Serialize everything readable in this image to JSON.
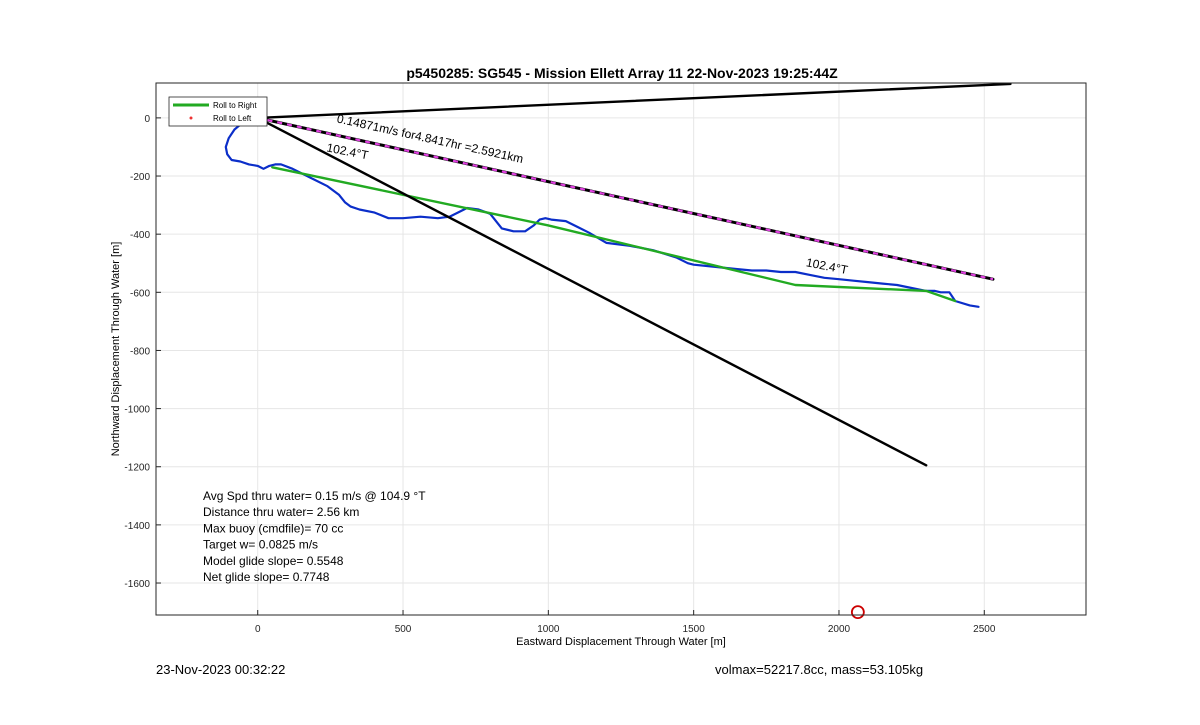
{
  "figure": {
    "footer_left": "23-Nov-2023 00:32:22",
    "footer_right": "volmax=52217.8cc, mass=53.105kg"
  },
  "chart_data": {
    "type": "line",
    "title": "p5450285: SG545 - Mission Ellett Array 11 22-Nov-2023 19:25:44Z",
    "xlabel": "Eastward Displacement Through Water [m]",
    "ylabel": "Northward Displacement Through Water [m]",
    "xlim": [
      -350,
      2850
    ],
    "ylim": [
      -1710,
      120
    ],
    "x_ticks": [
      0,
      500,
      1000,
      1500,
      2000,
      2500
    ],
    "y_ticks": [
      0,
      -200,
      -400,
      -600,
      -800,
      -1000,
      -1200,
      -1400,
      -1600
    ],
    "grid": true,
    "legend_position": "top-left",
    "legend": [
      {
        "label": "Roll to Right",
        "color": "#22aa22",
        "marker": "line"
      },
      {
        "label": "Roll to Left",
        "color": "#ee3333",
        "marker": "dot"
      }
    ],
    "series": [
      {
        "role": "track",
        "color": "#0b2ec9",
        "x": [
          0,
          -20,
          -50,
          -80,
          -100,
          -110,
          -105,
          -90,
          -60,
          -30,
          0,
          20,
          40,
          60,
          80,
          120,
          180,
          240,
          280,
          300,
          320,
          350,
          400,
          450,
          500,
          560,
          620,
          660,
          690,
          720,
          760,
          800,
          840,
          880,
          920,
          950,
          970,
          990,
          1010,
          1060,
          1100,
          1140,
          1200,
          1280,
          1360,
          1440,
          1480,
          1500,
          1550,
          1600,
          1650,
          1700,
          1750,
          1800,
          1850,
          1900,
          1950,
          2000,
          2050,
          2100,
          2150,
          2200,
          2250,
          2300,
          2330,
          2350,
          2380,
          2400,
          2450,
          2480
        ],
        "y": [
          0,
          -5,
          -15,
          -40,
          -70,
          -100,
          -125,
          -145,
          -150,
          -160,
          -165,
          -175,
          -165,
          -160,
          -160,
          -175,
          -205,
          -235,
          -265,
          -290,
          -305,
          -315,
          -325,
          -345,
          -345,
          -340,
          -345,
          -340,
          -325,
          -310,
          -315,
          -330,
          -380,
          -390,
          -390,
          -370,
          -350,
          -345,
          -350,
          -355,
          -375,
          -395,
          -430,
          -440,
          -455,
          -480,
          -500,
          -505,
          -510,
          -515,
          -520,
          -525,
          -525,
          -530,
          -530,
          -540,
          -550,
          -555,
          -560,
          -565,
          -570,
          -575,
          -585,
          -595,
          -595,
          -600,
          -600,
          -630,
          -645,
          -650
        ]
      },
      {
        "role": "roll-to-right",
        "color": "#22aa22",
        "x": [
          50,
          1000,
          1850,
          2300,
          2400
        ],
        "y": [
          -170,
          -370,
          -575,
          -595,
          -630
        ]
      },
      {
        "role": "heading-line",
        "color": "#000000",
        "x": [
          0,
          2300
        ],
        "y": [
          0,
          -1195
        ]
      },
      {
        "role": "top-line",
        "color": "#000000",
        "x": [
          0,
          2590
        ],
        "y": [
          0,
          117
        ]
      },
      {
        "role": "net-displacement",
        "color": "#000000",
        "overlay_color": "#e040e0",
        "x": [
          0,
          2530
        ],
        "y": [
          0,
          -555
        ]
      }
    ],
    "annotations": [
      {
        "text": "0.14871m/s for4.8417hr =2.5921km",
        "x": 270,
        "y": -15,
        "angle": 12.4
      },
      {
        "text": "102.4°T",
        "x": 235,
        "y": -115,
        "angle": 11
      },
      {
        "text": "102.4°T",
        "x": 1885,
        "y": -510,
        "angle": 11
      }
    ],
    "stats": [
      "Avg Spd thru water=  0.15 m/s @ 104.9 °T",
      "Distance thru water=  2.56 km",
      "Max buoy (cmdfile)= 70 cc",
      "Target w= 0.0825 m/s",
      "Model glide slope= 0.5548",
      "Net glide slope= 0.7748"
    ],
    "marker": {
      "x": 2065,
      "y": -1700,
      "color": "#cc0000",
      "shape": "circle"
    }
  }
}
